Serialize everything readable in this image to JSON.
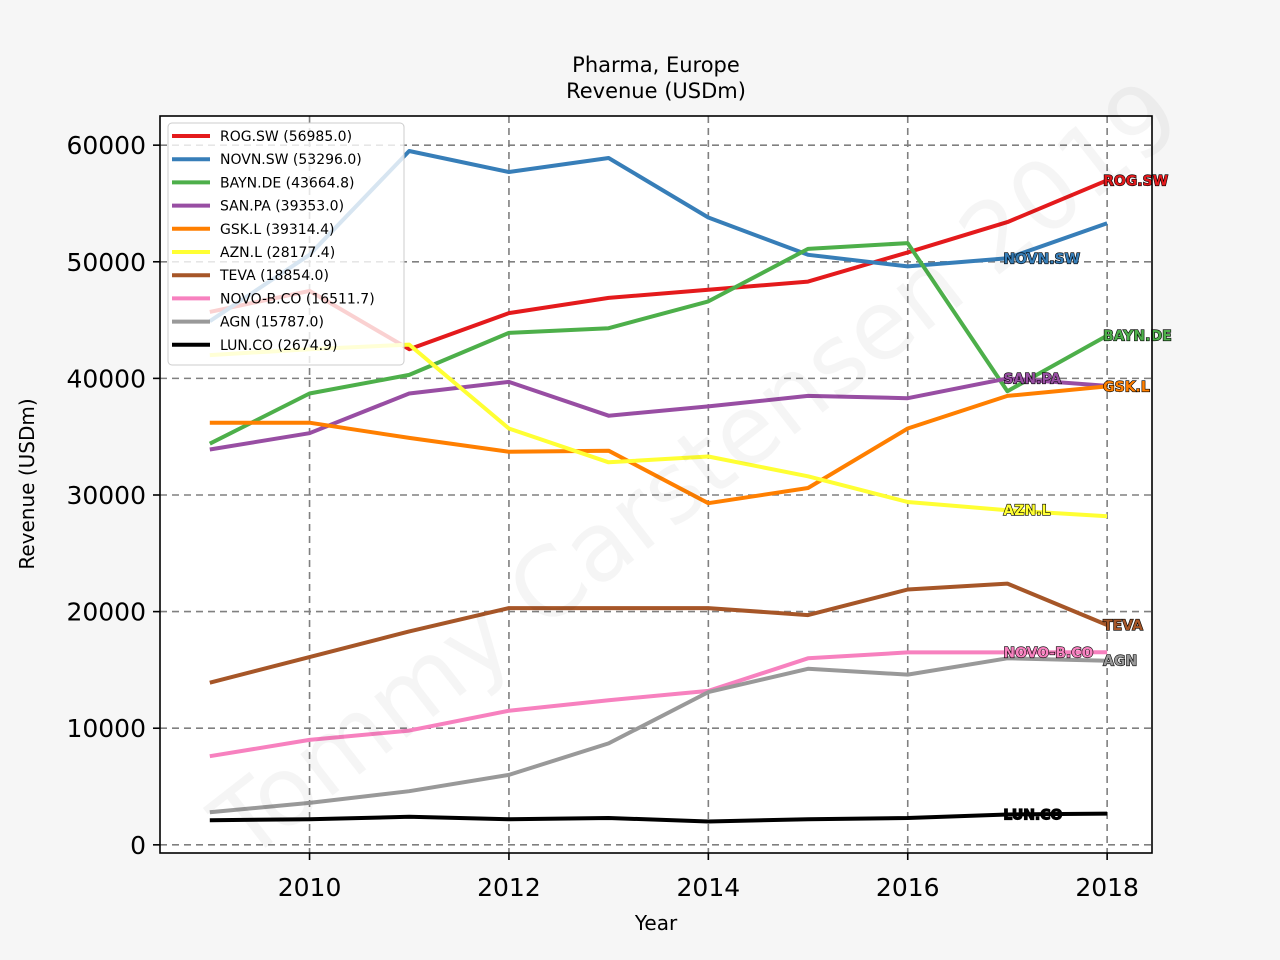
{
  "watermark": "Tommy Carstensen 2019",
  "chart_data": {
    "type": "line",
    "title": "Pharma, Europe",
    "subtitle": "Revenue (USDm)",
    "xlabel": "Year",
    "ylabel": "Revenue (USDm)",
    "xlim": [
      2008.5,
      2018.45
    ],
    "ylim": [
      -700,
      62500
    ],
    "x_ticks": [
      2010,
      2012,
      2014,
      2016,
      2018
    ],
    "y_ticks": [
      0,
      10000,
      20000,
      30000,
      40000,
      50000,
      60000
    ],
    "grid": true,
    "legend_position": "top-left",
    "x": [
      2009,
      2010,
      2011,
      2012,
      2013,
      2014,
      2015,
      2016,
      2017,
      2018
    ],
    "series": [
      {
        "name": "ROG.SW",
        "legend": "ROG.SW (56985.0)",
        "label": "ROG.SW",
        "color": "#e41a1c",
        "values": [
          45700,
          47500,
          42500,
          45600,
          46900,
          47600,
          48300,
          50800,
          53400,
          56985
        ]
      },
      {
        "name": "NOVN.SW",
        "legend": "NOVN.SW (53296.0)",
        "label": "NOVN.SW",
        "color": "#377eb8",
        "values": [
          44900,
          50600,
          59500,
          57700,
          58900,
          53800,
          50600,
          49600,
          50300,
          53296
        ]
      },
      {
        "name": "BAYN.DE",
        "legend": "BAYN.DE (43664.8)",
        "label": "BAYN.DE",
        "color": "#4daf4a",
        "values": [
          34400,
          38700,
          40300,
          43900,
          44300,
          46600,
          51100,
          51600,
          38900,
          43664.8
        ]
      },
      {
        "name": "SAN.PA",
        "legend": "SAN.PA (39353.0)",
        "label": "SAN.PA",
        "color": "#984ea3",
        "values": [
          33900,
          35300,
          38700,
          39700,
          36800,
          37600,
          38500,
          38300,
          40000,
          39353
        ]
      },
      {
        "name": "GSK.L",
        "legend": "GSK.L (39314.4)",
        "label": "GSK.L",
        "color": "#ff7f00",
        "values": [
          36200,
          36200,
          34900,
          33700,
          33800,
          29300,
          30600,
          35700,
          38500,
          39314.4
        ]
      },
      {
        "name": "AZN.L",
        "legend": "AZN.L (28177.4)",
        "label": "AZN.L",
        "color": "#ffff33",
        "values": [
          42000,
          42500,
          42900,
          35700,
          32800,
          33300,
          31600,
          29400,
          28700,
          28177.4
        ]
      },
      {
        "name": "TEVA",
        "legend": "TEVA (18854.0)",
        "label": "TEVA",
        "color": "#a65628",
        "values": [
          13900,
          16100,
          18300,
          20300,
          20300,
          20300,
          19700,
          21900,
          22400,
          18854
        ]
      },
      {
        "name": "NOVO-B.CO",
        "legend": "NOVO-B.CO (16511.7)",
        "label": "NOVO-B.CO",
        "color": "#f781bf",
        "values": [
          7600,
          9000,
          9800,
          11500,
          12400,
          13200,
          16000,
          16500,
          16500,
          16511.7
        ]
      },
      {
        "name": "AGN",
        "legend": "AGN (15787.0)",
        "label": "AGN",
        "color": "#999999",
        "values": [
          2800,
          3600,
          4600,
          6000,
          8700,
          13100,
          15100,
          14600,
          16000,
          15787
        ]
      },
      {
        "name": "LUN.CO",
        "legend": "LUN.CO (2674.9)",
        "label": "LUN.CO",
        "color": "#000000",
        "values": [
          2100,
          2200,
          2400,
          2200,
          2300,
          2000,
          2200,
          2300,
          2600,
          2674.9
        ]
      }
    ]
  }
}
